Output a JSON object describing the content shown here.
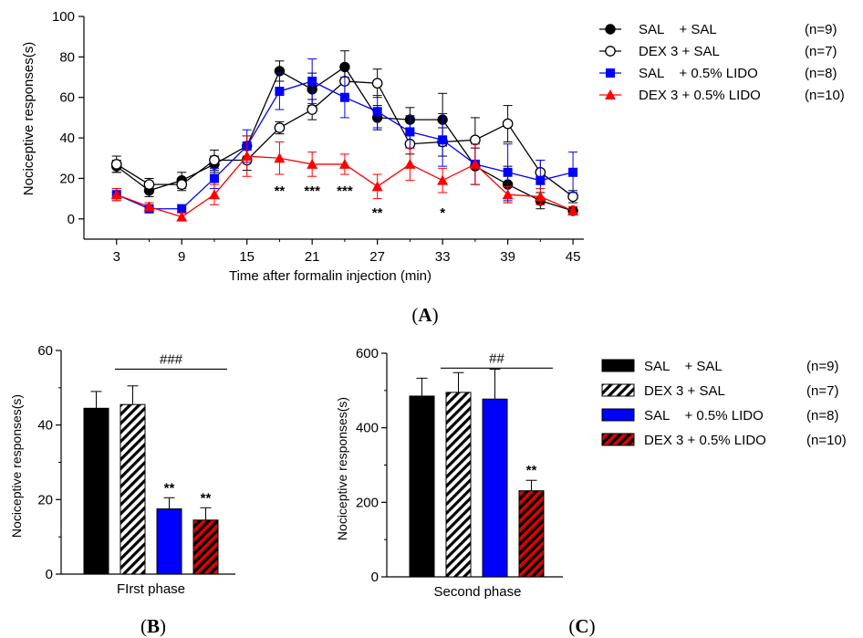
{
  "panels": {
    "a": "(A)",
    "b": "(B)",
    "c": "(C)"
  },
  "legend": [
    {
      "name": "SAL    + SAL",
      "n": "(n=9)",
      "color": "#000000",
      "marker": "filled-circle",
      "bar_fill": "solid-black"
    },
    {
      "name": "DEX 3 + SAL",
      "n": "(n=7)",
      "color": "#000000",
      "marker": "open-circle",
      "bar_fill": "hatched-black"
    },
    {
      "name": "SAL    + 0.5% LIDO",
      "n": "(n=8)",
      "color": "#0000ff",
      "marker": "filled-square",
      "bar_fill": "solid-blue"
    },
    {
      "name": "DEX 3 + 0.5% LIDO",
      "n": "(n=10)",
      "color": "#ff0000",
      "marker": "filled-triangle",
      "bar_fill": "hatched-red"
    }
  ],
  "chart_data": [
    {
      "type": "line",
      "panel": "A",
      "xlabel": "Time after formalin injection (min)",
      "ylabel": "Nociceptive responses(s)",
      "x": [
        3,
        6,
        9,
        12,
        15,
        18,
        21,
        24,
        27,
        30,
        33,
        36,
        39,
        42,
        45
      ],
      "xticks": [
        3,
        9,
        15,
        21,
        27,
        33,
        39,
        45
      ],
      "yticks": [
        0,
        20,
        40,
        60,
        80,
        100
      ],
      "xlim": [
        0,
        46
      ],
      "ylim": [
        -10,
        100
      ],
      "series": [
        {
          "name": "SAL    + SAL",
          "values": [
            26,
            14,
            19,
            27,
            36,
            73,
            64,
            75,
            50,
            49,
            49,
            26,
            17,
            9,
            4
          ],
          "errors": [
            3,
            3,
            4,
            4,
            5,
            5,
            8,
            8,
            6,
            6,
            13,
            9,
            9,
            4,
            2
          ]
        },
        {
          "name": "DEX 3 + SAL",
          "values": [
            27,
            17,
            17,
            29,
            29,
            45,
            54,
            68,
            67,
            37,
            38,
            39,
            47,
            23,
            11
          ],
          "errors": [
            4,
            3,
            3,
            5,
            5,
            3,
            5,
            8,
            7,
            5,
            7,
            11,
            9,
            6,
            3
          ]
        },
        {
          "name": "SAL    + 0.5% LIDO",
          "values": [
            12,
            5,
            5,
            20,
            36,
            63,
            68,
            60,
            53,
            43,
            39,
            27,
            23,
            19,
            23
          ],
          "errors": [
            3,
            2,
            2,
            5,
            8,
            9,
            11,
            10,
            8,
            8,
            13,
            10,
            14,
            10,
            10
          ]
        },
        {
          "name": "DEX 3 + 0.5% LIDO",
          "values": [
            12,
            6,
            1,
            12,
            31,
            30,
            27,
            27,
            16,
            27,
            19,
            27,
            12,
            11,
            4
          ],
          "errors": [
            3,
            2,
            2,
            5,
            10,
            8,
            6,
            5,
            6,
            8,
            6,
            10,
            4,
            4,
            2
          ]
        }
      ],
      "annotations": [
        {
          "x": 18,
          "text": "**",
          "row": 1
        },
        {
          "x": 21,
          "text": "***",
          "row": 1
        },
        {
          "x": 24,
          "text": "***",
          "row": 1
        },
        {
          "x": 27,
          "text": "**",
          "row": 2
        },
        {
          "x": 33,
          "text": "*",
          "row": 2
        }
      ]
    },
    {
      "type": "bar",
      "panel": "B",
      "xlabel": "FIrst phase",
      "ylabel": "Nociceptive responses(s)",
      "yticks": [
        0,
        20,
        40,
        60
      ],
      "ylim": [
        0,
        60
      ],
      "categories": [
        "SAL    + SAL",
        "DEX 3 + SAL",
        "SAL    + 0.5% LIDO",
        "DEX 3 + 0.5% LIDO"
      ],
      "values": [
        44.5,
        45.5,
        17.5,
        14.5
      ],
      "errors": [
        4.5,
        5,
        3,
        3.3
      ],
      "marks": [
        "",
        "",
        "**",
        "**"
      ],
      "bracket": {
        "from": 1,
        "to": 3,
        "text": "###",
        "value": 55
      }
    },
    {
      "type": "bar",
      "panel": "C",
      "xlabel": "Second phase",
      "ylabel": "Nociceptive responses(s)",
      "yticks": [
        0,
        200,
        400,
        600
      ],
      "ylim": [
        0,
        600
      ],
      "categories": [
        "SAL    + SAL",
        "DEX 3 + SAL",
        "SAL    + 0.5% LIDO",
        "DEX 3 + 0.5% LIDO"
      ],
      "values": [
        485,
        495,
        477,
        231
      ],
      "errors": [
        48,
        53,
        80,
        28
      ],
      "marks": [
        "",
        "",
        "",
        "**"
      ],
      "bracket": {
        "from": 1,
        "to": 3,
        "text": "##",
        "value": 560
      }
    }
  ]
}
